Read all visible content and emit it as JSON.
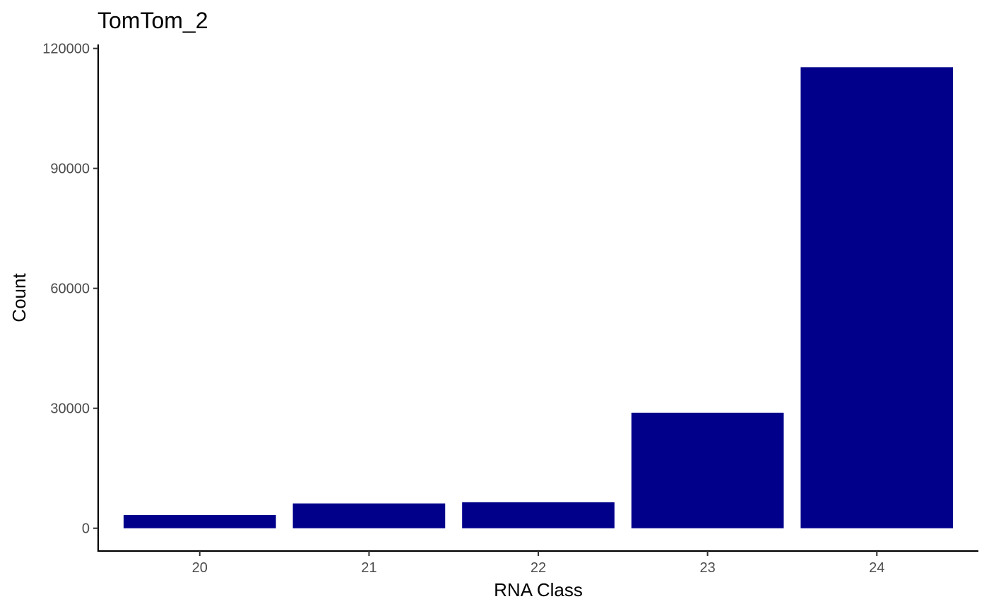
{
  "chart_data": {
    "type": "bar",
    "title": "TomTom_2",
    "xlabel": "RNA Class",
    "ylabel": "Count",
    "categories": [
      "20",
      "21",
      "22",
      "23",
      "24"
    ],
    "values": [
      3300,
      6200,
      6500,
      28900,
      115300
    ],
    "ylim": [
      -5700,
      121000
    ],
    "yticks": [
      0,
      30000,
      60000,
      90000,
      120000
    ],
    "bar_color": "#00008B",
    "grid": false,
    "legend": "none"
  }
}
